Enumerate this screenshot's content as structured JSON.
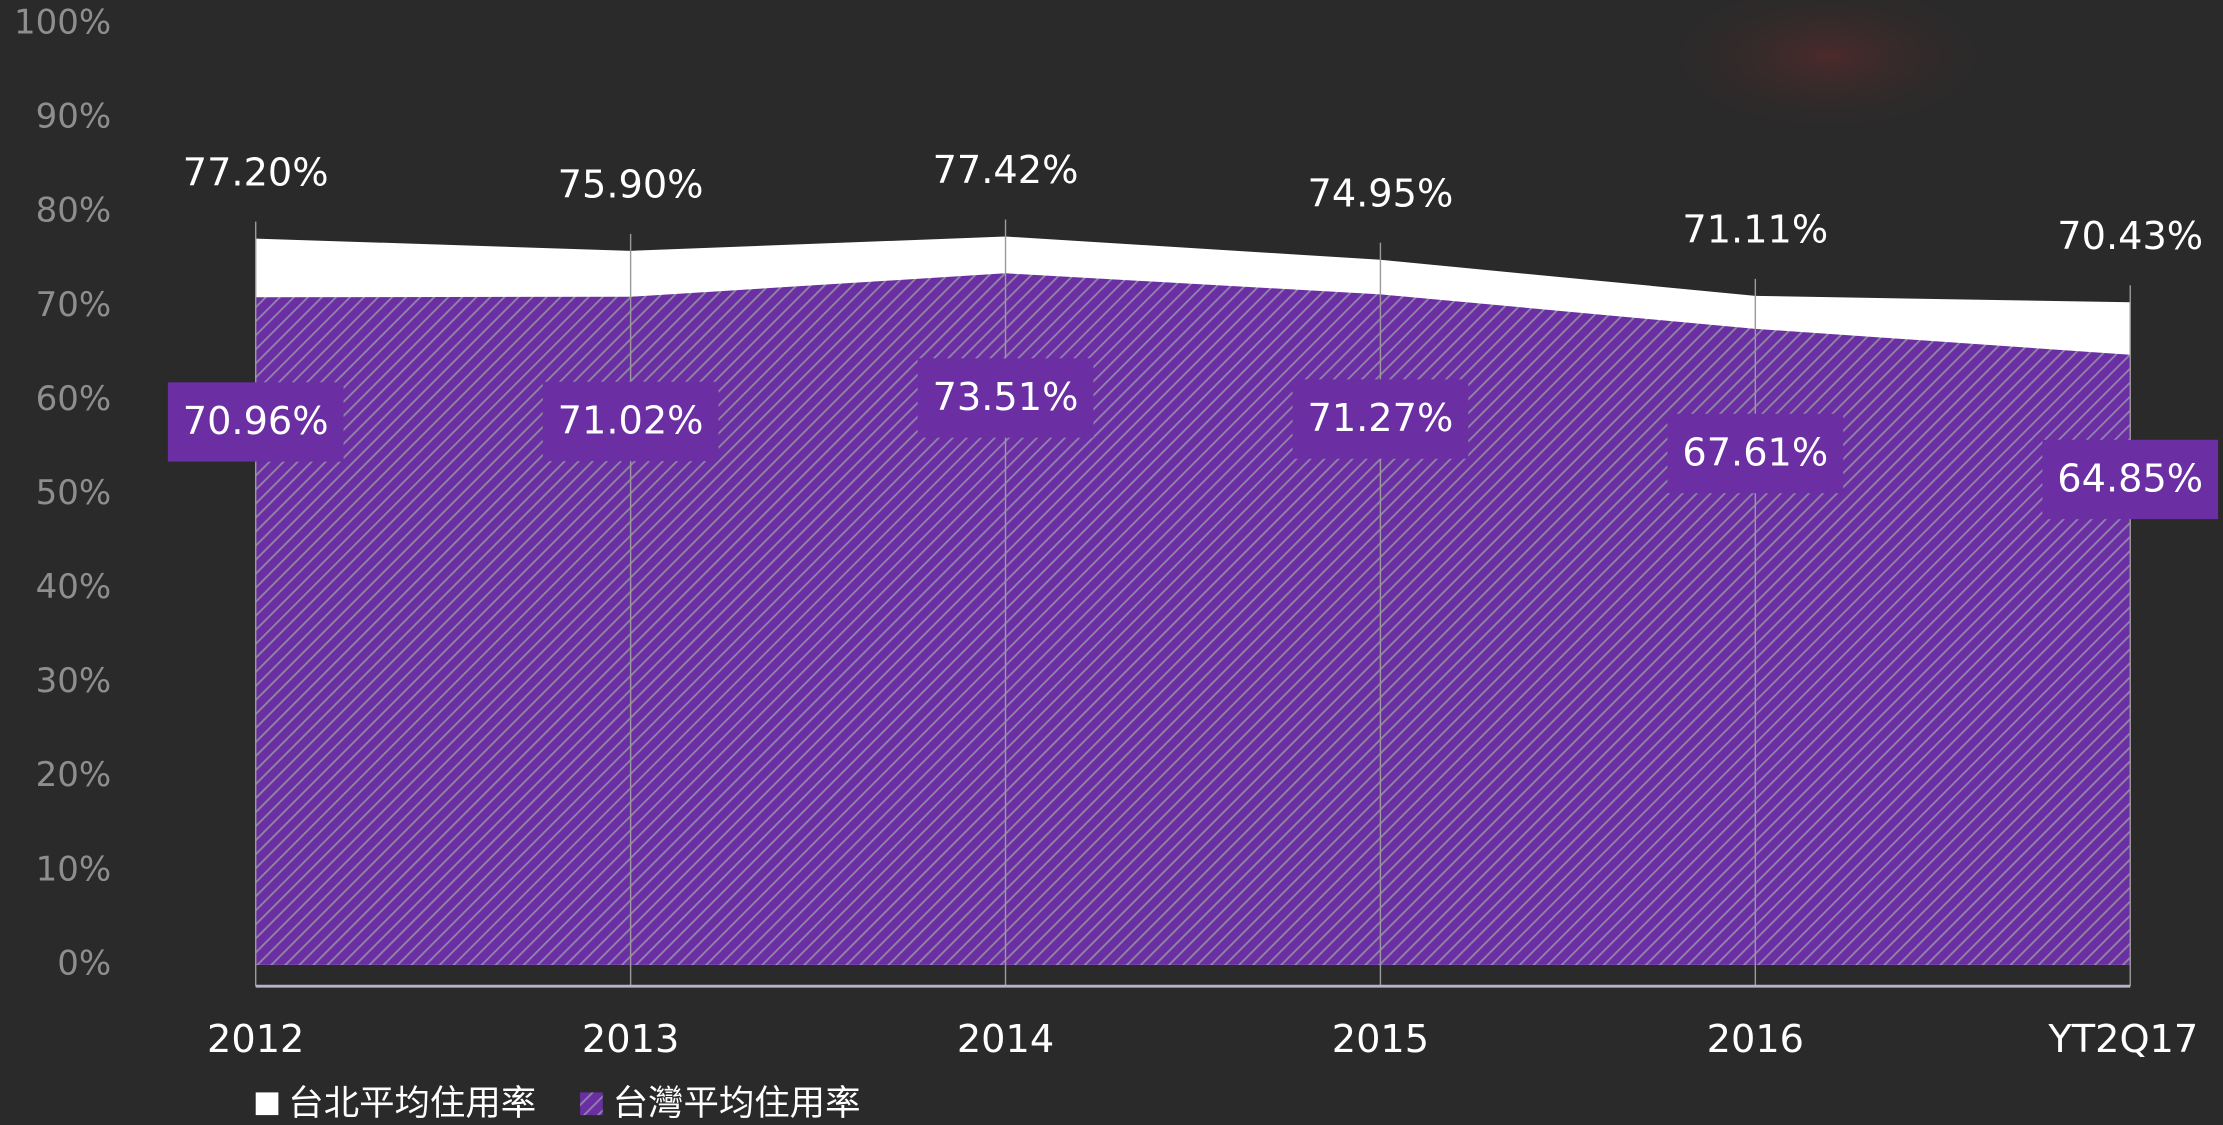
{
  "chart_data": {
    "type": "area",
    "categories": [
      "2012",
      "2013",
      "2014",
      "2015",
      "2016",
      "YT2Q17"
    ],
    "series": [
      {
        "name": "台北平均住用率",
        "color": "#ffffff",
        "values": [
          77.2,
          75.9,
          77.42,
          74.95,
          71.11,
          70.43
        ],
        "value_labels": [
          "77.20%",
          "75.90%",
          "77.42%",
          "74.95%",
          "71.11%",
          "70.43%"
        ]
      },
      {
        "name": "台灣平均住用率",
        "color": "#6b2fa3",
        "values": [
          70.96,
          71.02,
          73.51,
          71.27,
          67.61,
          64.85
        ],
        "value_labels": [
          "70.96%",
          "71.02%",
          "73.51%",
          "71.27%",
          "67.61%",
          "64.85%"
        ]
      }
    ],
    "ylim": [
      0,
      100
    ],
    "yticks": [
      {
        "value": 0,
        "label": "0%"
      },
      {
        "value": 10,
        "label": "10%"
      },
      {
        "value": 20,
        "label": "20%"
      },
      {
        "value": 30,
        "label": "30%"
      },
      {
        "value": 40,
        "label": "40%"
      },
      {
        "value": 50,
        "label": "50%"
      },
      {
        "value": 60,
        "label": "60%"
      },
      {
        "value": 70,
        "label": "70%"
      },
      {
        "value": 80,
        "label": "80%"
      },
      {
        "value": 90,
        "label": "90%"
      },
      {
        "value": 100,
        "label": "100%"
      }
    ],
    "legend": "bottom-left"
  }
}
